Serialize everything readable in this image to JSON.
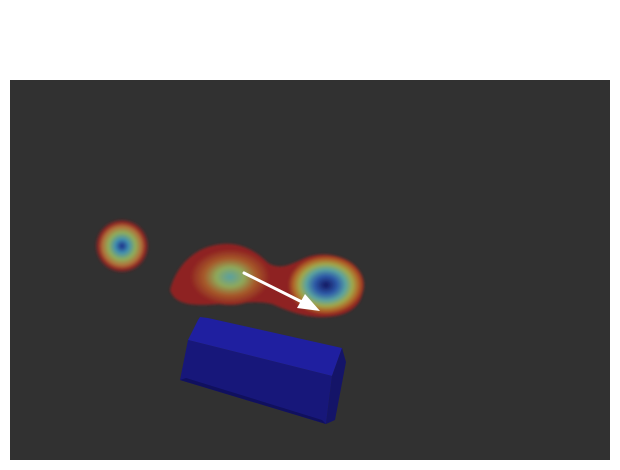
{
  "viewport": {
    "background_color": "#313131",
    "description_icons": {
      "left_hotspot": "heatmap-blob-icon",
      "center_hotspot": "heatmap-blob-icon",
      "pose_arrow": "arrow-icon",
      "robot": "hexagonal-prism-icon"
    }
  },
  "colors": {
    "heat_low": "#8b1a1a",
    "heat_mid": "#a8a832",
    "heat_high": "#4aa0a0",
    "heat_peak": "#1a1a6e",
    "arrow": "#ffffff",
    "prism_top": "#1f1fa0",
    "prism_side": "#17177a",
    "prism_dark": "#10105e"
  }
}
